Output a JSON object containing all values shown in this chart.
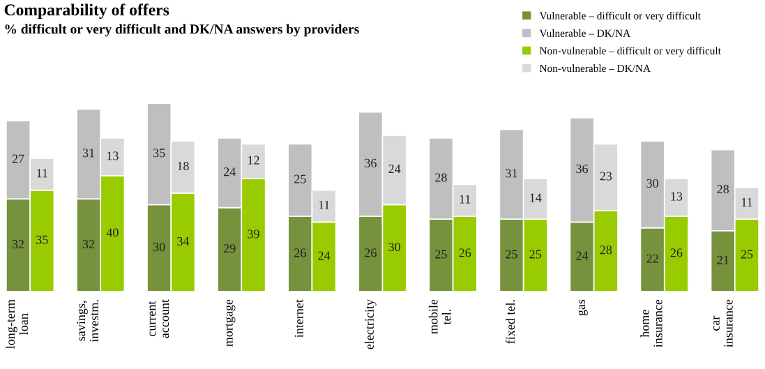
{
  "chart_data": {
    "type": "bar",
    "title": "Comparability of offers",
    "subtitle": "% difficult or very difficult and DK/NA answers by providers",
    "categories": [
      "long-term\nloan",
      null,
      "savings,\ninvestm.",
      null,
      "current\naccount",
      null,
      "mortgage",
      null,
      "internet",
      null,
      "electricity",
      null,
      "mobile\ntel.",
      null,
      "fixed tel.",
      null,
      "gas",
      null,
      "home\ninsurance",
      null,
      "car\ninsurance",
      null
    ],
    "series": [
      {
        "name": "Vulnerable – difficult or very difficult",
        "color": "#76923c",
        "values": [
          32,
          null,
          32,
          null,
          30,
          null,
          29,
          null,
          26,
          null,
          26,
          null,
          25,
          null,
          25,
          null,
          24,
          null,
          22,
          null,
          21,
          null
        ]
      },
      {
        "name": "Vulnerable – DK/NA",
        "color": "#bfbfbf",
        "values": [
          27,
          null,
          31,
          null,
          35,
          null,
          24,
          null,
          25,
          null,
          36,
          null,
          28,
          null,
          31,
          null,
          36,
          null,
          30,
          null,
          28,
          null
        ]
      },
      {
        "name": "Non-vulnerable – difficult or very difficult",
        "color": "#99cc00",
        "values": [
          null,
          35,
          null,
          40,
          null,
          34,
          null,
          39,
          null,
          24,
          null,
          30,
          null,
          26,
          null,
          25,
          null,
          28,
          null,
          26,
          null,
          25
        ]
      },
      {
        "name": "Non-vulnerable – DK/NA",
        "color": "#d9d9d9",
        "values": [
          null,
          11,
          null,
          13,
          null,
          18,
          null,
          12,
          null,
          11,
          null,
          24,
          null,
          11,
          null,
          14,
          null,
          23,
          null,
          13,
          null,
          11
        ]
      }
    ],
    "stacked": true,
    "data_labels": true,
    "legend": "top right",
    "tick_labels": "x",
    "grid": false
  }
}
